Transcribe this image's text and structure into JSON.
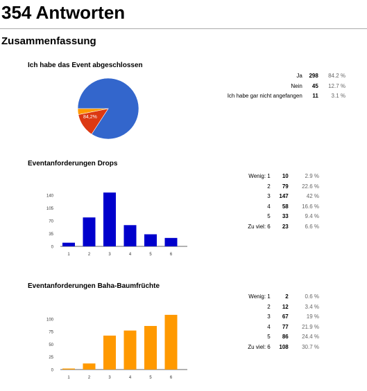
{
  "header": {
    "title": "354 Antworten"
  },
  "summary": {
    "title": "Zusammenfassung"
  },
  "chart_data": [
    {
      "type": "pie",
      "title": "Ich habe das Event abgeschlossen",
      "categories": [
        "Ja",
        "Nein",
        "Ich habe gar nicht angefangen"
      ],
      "values": [
        298,
        45,
        11
      ],
      "percents": [
        "84.2 %",
        "12.7 %",
        "3.1 %"
      ],
      "slice_label": "84,2%",
      "colors": [
        "#3366cc",
        "#dc3912",
        "#ff9900"
      ]
    },
    {
      "type": "bar",
      "title": "Eventanforderungen Drops",
      "categories": [
        "1",
        "2",
        "3",
        "4",
        "5",
        "6"
      ],
      "table_labels": [
        "Wenig: 1",
        "2",
        "3",
        "4",
        "5",
        "Zu viel: 6"
      ],
      "values": [
        10,
        79,
        147,
        58,
        33,
        23
      ],
      "percents": [
        "2.9 %",
        "22.6 %",
        "42 %",
        "16.6 %",
        "9.4 %",
        "6.6 %"
      ],
      "yticks": [
        0,
        35,
        70,
        105,
        140
      ],
      "ylim": [
        0,
        155
      ],
      "color": "#0000cc"
    },
    {
      "type": "bar",
      "title": "Eventanforderungen Baha-Baumfrüchte",
      "categories": [
        "1",
        "2",
        "3",
        "4",
        "5",
        "6"
      ],
      "table_labels": [
        "Wenig: 1",
        "2",
        "3",
        "4",
        "5",
        "Zu viel: 6"
      ],
      "values": [
        2,
        12,
        67,
        77,
        86,
        108
      ],
      "percents": [
        "0.6 %",
        "3.4 %",
        "19 %",
        "21.9 %",
        "24.4 %",
        "30.7 %"
      ],
      "yticks": [
        0,
        25,
        50,
        75,
        100
      ],
      "ylim": [
        0,
        112
      ],
      "color": "#ff9900"
    }
  ]
}
